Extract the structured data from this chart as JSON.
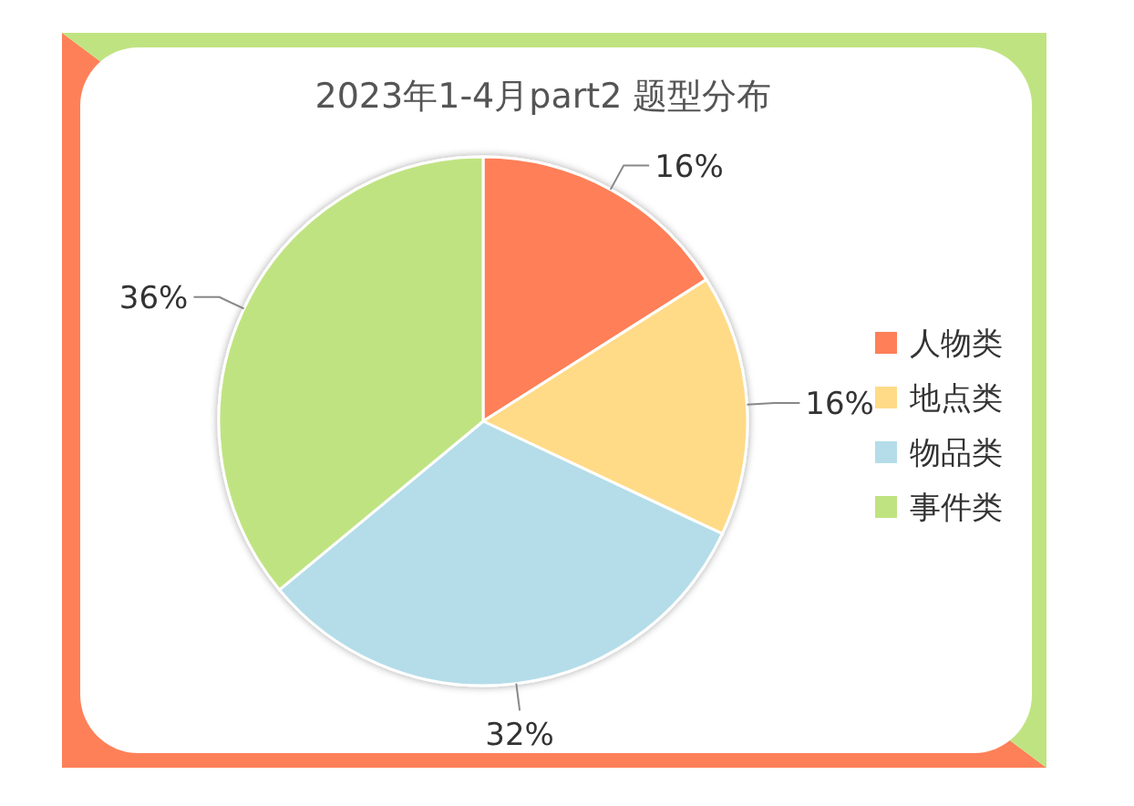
{
  "chart_data": {
    "type": "pie",
    "title": "2023年1-4月part2 题型分布",
    "categories": [
      "人物类",
      "地点类",
      "物品类",
      "事件类"
    ],
    "values": [
      16,
      16,
      32,
      36
    ],
    "colors": [
      "#fe7f58",
      "#ffdb88",
      "#b4dde9",
      "#c0e382"
    ],
    "value_labels": [
      "16%",
      "16%",
      "32%",
      "36%"
    ],
    "legend": "right"
  }
}
